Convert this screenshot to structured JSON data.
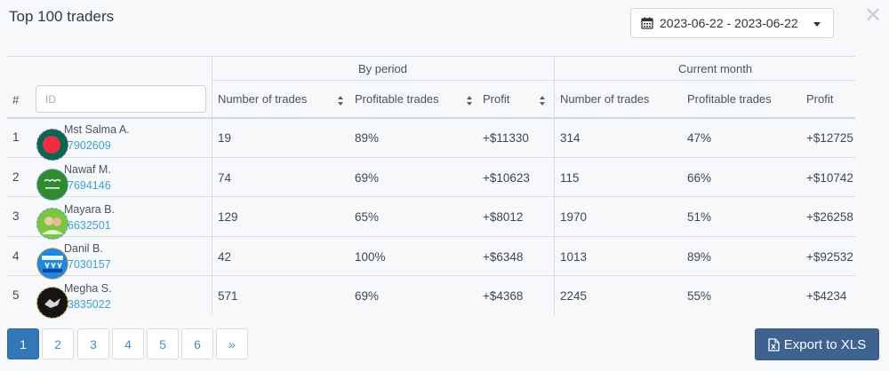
{
  "title": "Top 100 traders",
  "date_range": "2023-06-22 - 2023-06-22",
  "table": {
    "group_by_period": "By period",
    "group_current_month": "Current month",
    "col_rank": "#",
    "id_placeholder": "ID",
    "col_trades": "Number of trades",
    "col_profitable": "Profitable trades",
    "col_profit": "Profit",
    "col_trades_m": "Number of trades",
    "col_profitable_m": "Profitable trades",
    "col_profit_m": "Profit",
    "rows": [
      {
        "rank": "1",
        "name": "Mst Salma A.",
        "id": "7902609",
        "trades": "19",
        "profitable": "89%",
        "profit": "+$11330",
        "trades_m": "314",
        "profitable_m": "47%",
        "profit_m": "+$12725",
        "avatar": "bangladesh-flag-avatar"
      },
      {
        "rank": "2",
        "name": "Nawaf M.",
        "id": "7694146",
        "trades": "74",
        "profitable": "69%",
        "profit": "+$10623",
        "trades_m": "115",
        "profitable_m": "66%",
        "profit_m": "+$10742",
        "avatar": "saudi-flag-avatar"
      },
      {
        "rank": "3",
        "name": "Mayara B.",
        "id": "6632501",
        "trades": "129",
        "profitable": "65%",
        "profit": "+$8012",
        "trades_m": "1970",
        "profitable_m": "51%",
        "profit_m": "+$26258",
        "avatar": "photo-avatar"
      },
      {
        "rank": "4",
        "name": "Danil B.",
        "id": "7030157",
        "trades": "42",
        "profitable": "100%",
        "profit": "+$6348",
        "trades_m": "1013",
        "profitable_m": "89%",
        "profit_m": "+$92532",
        "avatar": "telegram-logo-avatar"
      },
      {
        "rank": "5",
        "name": "Megha S.",
        "id": "3835022",
        "trades": "571",
        "profitable": "69%",
        "profit": "+$4368",
        "trades_m": "2245",
        "profitable_m": "55%",
        "profit_m": "+$4234",
        "avatar": "dark-photo-avatar"
      }
    ]
  },
  "pagination": [
    "1",
    "2",
    "3",
    "4",
    "5",
    "6",
    "»"
  ],
  "active_page": "1",
  "export_label": "Export to XLS",
  "colors": {
    "accent": "#3277b8",
    "link": "#3aa3d6",
    "export_bg": "#3e6391"
  }
}
